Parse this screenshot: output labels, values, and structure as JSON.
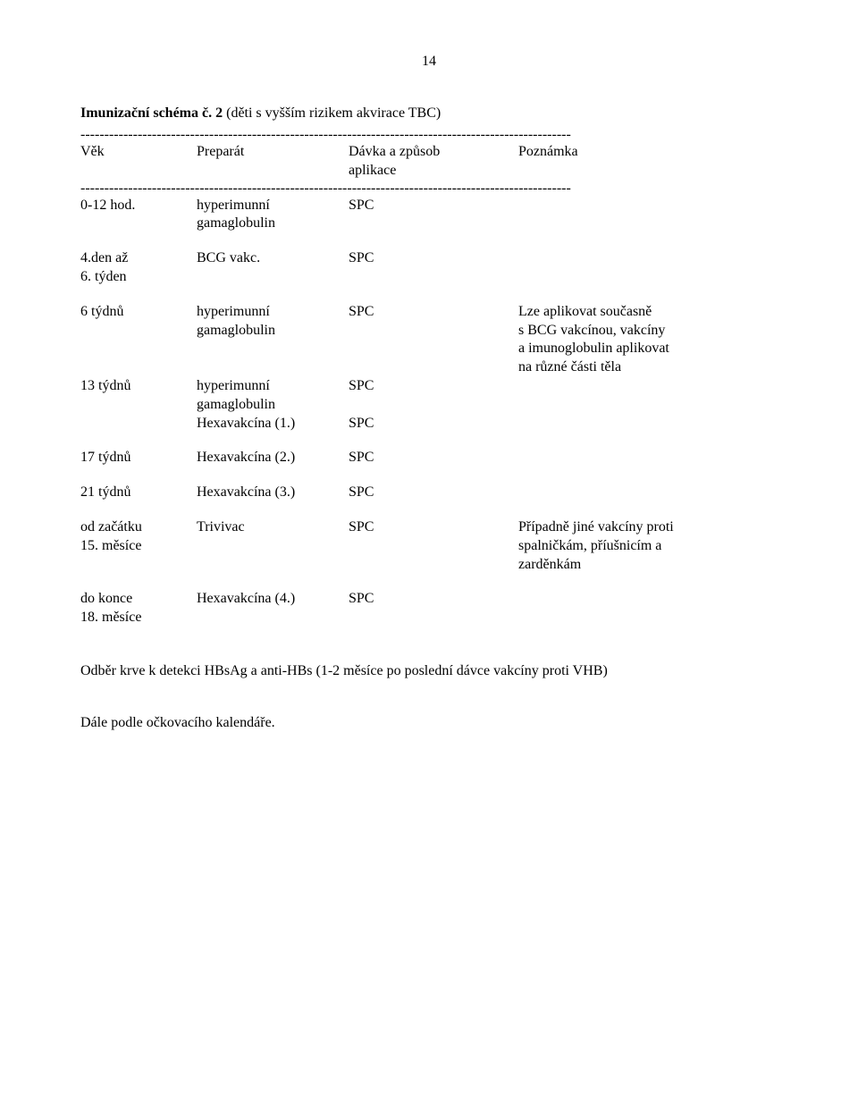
{
  "page_number": "14",
  "title_prefix": "Imunizační schéma č. 2",
  "title_rest": " (děti s vyšším rizikem akvirace TBC)",
  "dashline": "-------------------------------------------------------------------------------------------------------",
  "header": {
    "age": "Věk",
    "prep": "Preparát",
    "dose": "Dávka a způsob\naplikace",
    "note": "Poznámka"
  },
  "rows": [
    {
      "age": "0-12 hod.",
      "prep": "hyperimunní\ngamaglobulin",
      "dose": "SPC",
      "note": ""
    },
    {
      "age": "4.den až\n6. týden",
      "prep": "BCG vakc.",
      "dose": "SPC",
      "note": ""
    },
    {
      "age": "6 týdnů",
      "prep": "hyperimunní\ngamaglobulin",
      "dose": "SPC",
      "note": "Lze aplikovat současně\ns BCG vakcínou, vakcíny\na imunoglobulin aplikovat\nna různé části těla"
    },
    {
      "age": "13 týdnů",
      "prep": "hyperimunní\ngamaglobulin\nHexavakcína (1.)",
      "dose": "SPC\n\nSPC",
      "note": ""
    },
    {
      "age": "17 týdnů",
      "prep": "Hexavakcína (2.)",
      "dose": "SPC",
      "note": ""
    },
    {
      "age": "21 týdnů",
      "prep": "Hexavakcína (3.)",
      "dose": "SPC",
      "note": ""
    },
    {
      "age": "od začátku\n15. měsíce",
      "prep": "Trivivac",
      "dose": "SPC",
      "note": "Případně jiné vakcíny proti\nspalničkám, příušnicím a\nzarděnkám"
    },
    {
      "age": "do konce\n18. měsíce",
      "prep": "Hexavakcína (4.)",
      "dose": "SPC",
      "note": ""
    }
  ],
  "footer1": "Odběr krve k detekci HBsAg a anti-HBs (1-2 měsíce po poslední dávce vakcíny proti VHB)",
  "footer2": "Dále  podle  očkovacího kalendáře."
}
